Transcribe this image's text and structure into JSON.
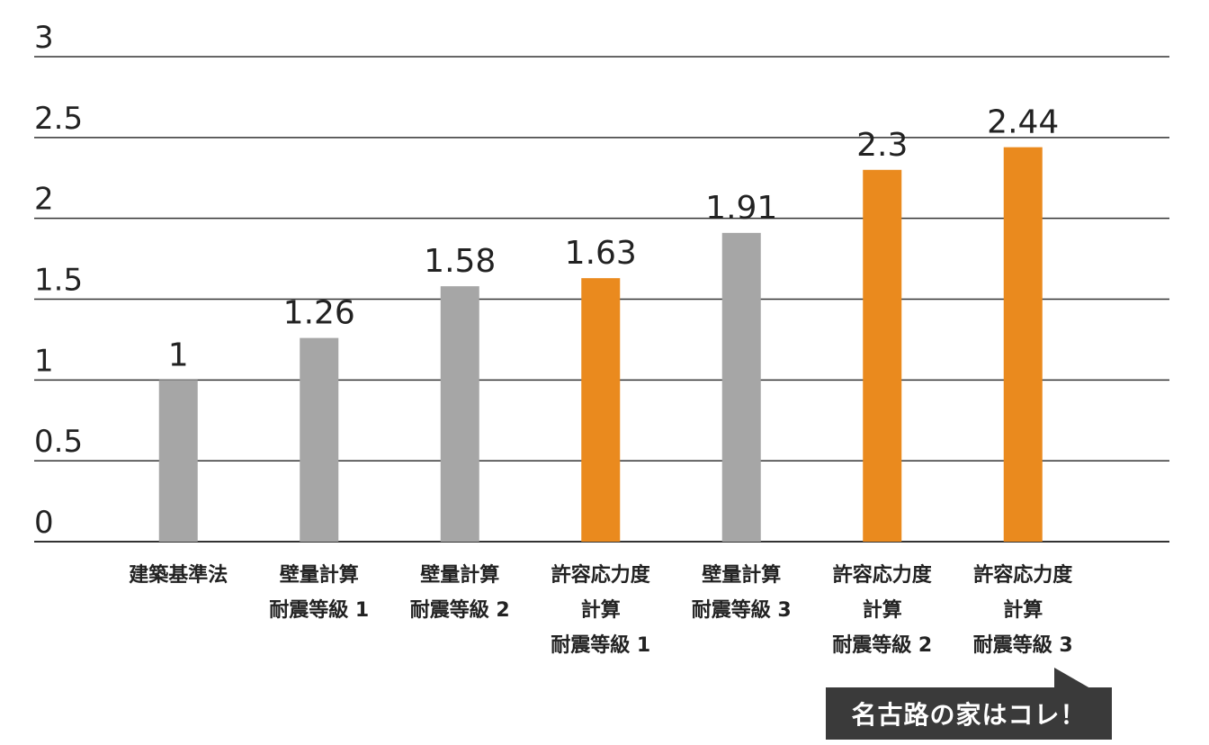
{
  "chart_data": {
    "type": "bar",
    "categories": [
      [
        "建築基準法"
      ],
      [
        "壁量計算",
        "耐震等級 1"
      ],
      [
        "壁量計算",
        "耐震等級 2"
      ],
      [
        "許容応力度",
        "計算",
        "耐震等級 1"
      ],
      [
        "壁量計算",
        "耐震等級 3"
      ],
      [
        "許容応力度",
        "計算",
        "耐震等級 2"
      ],
      [
        "許容応力度",
        "計算",
        "耐震等級 3"
      ]
    ],
    "values": [
      1,
      1.26,
      1.58,
      1.63,
      1.91,
      2.3,
      2.44
    ],
    "value_labels": [
      "1",
      "1.26",
      "1.58",
      "1.63",
      "1.91",
      "2.3",
      "2.44"
    ],
    "bar_colors": [
      "#a6a6a6",
      "#a6a6a6",
      "#a6a6a6",
      "#ea8a1e",
      "#a6a6a6",
      "#ea8a1e",
      "#ea8a1e"
    ],
    "yticks": [
      0,
      0.5,
      1,
      1.5,
      2,
      2.5,
      3
    ],
    "ytick_labels": [
      "0",
      "0.5",
      "1",
      "1.5",
      "2",
      "2.5",
      "3"
    ],
    "ylim": [
      0,
      3
    ],
    "grid": true,
    "title": "",
    "xlabel": "",
    "ylabel": ""
  },
  "callout": {
    "text": "名古路の家はコレ！",
    "target_category_index": 6
  }
}
